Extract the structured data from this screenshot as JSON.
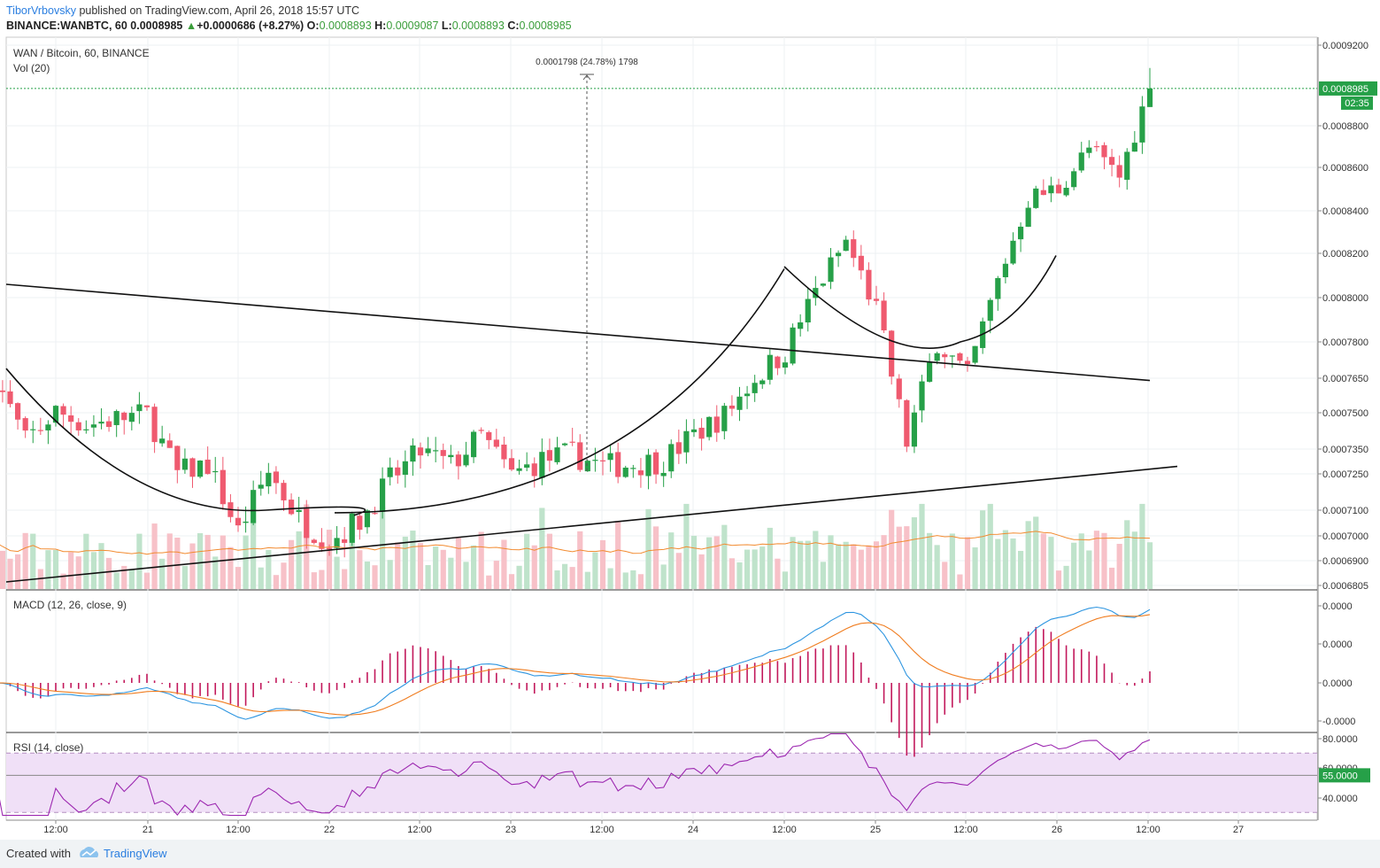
{
  "header": {
    "author": "TiborVrbovsky",
    "published": "published on TradingView.com, April 26, 2018 15:57 UTC",
    "symbol": "BINANCE:WANBTC, 60",
    "last": "0.0008985",
    "change": "+0.0000686 (+8.27%)",
    "o_label": "O:",
    "o_value": "0.0008893",
    "h_label": "H:",
    "h_value": "0.0009087",
    "l_label": "L:",
    "l_value": "0.0008893",
    "c_label": "C:",
    "c_value": "0.0008985"
  },
  "colors": {
    "up": "#26a048",
    "down": "#ef5a6f",
    "vol_up": "#bfe3cb",
    "vol_down": "#f7c1c8",
    "macd_line": "#2d95e0",
    "signal_line": "#f07d20",
    "hist": "#c2185b",
    "rsi_line": "#9c27b0",
    "rsi_band": "#f0e0f7",
    "price_tag": "#26a048"
  },
  "footer": {
    "created": "Created with",
    "brand": "TradingView"
  },
  "chart_data": [
    {
      "type": "candlestick",
      "title": "WAN / Bitcoin, 60, BINANCE",
      "volume_label": "Vol (20)",
      "x_tick_labels": [
        "12:00",
        "21",
        "12:00",
        "22",
        "12:00",
        "23",
        "12:00",
        "24",
        "12:00",
        "25",
        "12:00",
        "26",
        "12:00",
        "27"
      ],
      "y_tick_labels": [
        "0.0009200",
        "0.0008800",
        "0.0008600",
        "0.0008400",
        "0.0008200",
        "0.0008000",
        "0.0007800",
        "0.0007650",
        "0.0007500",
        "0.0007350",
        "0.0007250",
        "0.0007100",
        "0.0007000",
        "0.0006900",
        "0.0006805"
      ],
      "last_price_label": "0.0008985",
      "countdown_label": "02:35",
      "measure_annotation": "0.0001798 (24.78%) 1798",
      "close_path": [
        [
          "20 04:00",
          0.0007655
        ],
        [
          "20 08:00",
          0.000738
        ],
        [
          "20 12:00",
          0.0007505
        ],
        [
          "20 16:00",
          0.000745
        ],
        [
          "20 20:00",
          0.0007475
        ],
        [
          "21 00:00",
          0.0007495
        ],
        [
          "21 04:00",
          0.000725
        ],
        [
          "21 08:00",
          0.000729
        ],
        [
          "21 12:00",
          0.0007015
        ],
        [
          "21 16:00",
          0.000726
        ],
        [
          "21 20:00",
          0.0007065
        ],
        [
          "22 00:00",
          0.000698
        ],
        [
          "22 04:00",
          0.000706
        ],
        [
          "22 08:00",
          0.0007225
        ],
        [
          "22 12:00",
          0.000734
        ],
        [
          "22 16:00",
          0.0007285
        ],
        [
          "22 20:00",
          0.0007405
        ],
        [
          "23 00:00",
          0.0007245
        ],
        [
          "23 04:00",
          0.0007305
        ],
        [
          "23 08:00",
          0.000733
        ],
        [
          "23 12:00",
          0.000728
        ],
        [
          "23 16:00",
          0.000729
        ],
        [
          "23 20:00",
          0.0007305
        ],
        [
          "24 00:00",
          0.000741
        ],
        [
          "24 04:00",
          0.000749
        ],
        [
          "24 08:00",
          0.000765
        ],
        [
          "24 12:00",
          0.000776
        ],
        [
          "24 16:00",
          0.000803
        ],
        [
          "24 20:00",
          0.0008255
        ],
        [
          "25 00:00",
          0.0007945
        ],
        [
          "25 04:00",
          0.000738
        ],
        [
          "25 08:00",
          0.0007805
        ],
        [
          "25 12:00",
          0.0007655
        ],
        [
          "25 16:00",
          0.0008075
        ],
        [
          "25 20:00",
          0.0008455
        ],
        [
          "26 00:00",
          0.0008505
        ],
        [
          "26 04:00",
          0.000869
        ],
        [
          "26 08:00",
          0.0008555
        ],
        [
          "26 12:00",
          0.0008985
        ]
      ],
      "ylim": [
        0.0006805,
        0.00092
      ]
    },
    {
      "type": "line",
      "title": "MACD (12, 26, close, 9)",
      "series": [
        {
          "name": "MACD"
        },
        {
          "name": "Signal"
        },
        {
          "name": "Histogram"
        }
      ],
      "y_tick_labels": [
        "0.0000",
        "0.0000",
        "0.0000",
        "-0.0000"
      ]
    },
    {
      "type": "line",
      "title": "RSI (14, close)",
      "y_tick_labels": [
        "80.0000",
        "60.0000",
        "40.0000"
      ],
      "last_value_label": "55.0000",
      "band": [
        30,
        70
      ],
      "ylim": [
        20,
        85
      ]
    }
  ]
}
